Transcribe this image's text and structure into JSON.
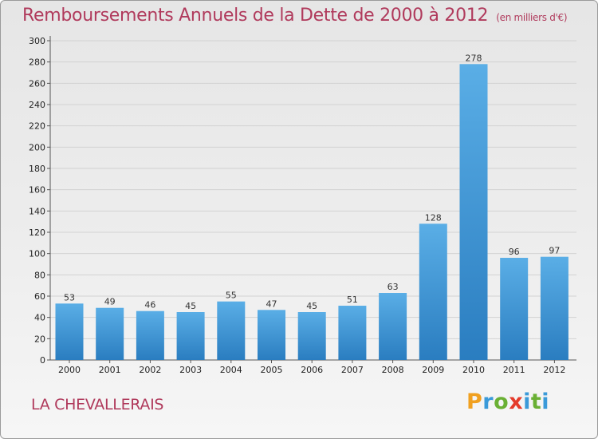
{
  "header": {
    "title": "Remboursements Annuels de la Dette de 2000 à 2012",
    "unit": "(en milliers d'€)"
  },
  "footer": {
    "commune": "LA CHEVALLERAIS",
    "logo": "Proxiti"
  },
  "chart_data": {
    "type": "bar",
    "title": "Remboursements Annuels de la Dette de 2000 à 2012",
    "subtitle": "(en milliers d'€)",
    "categories": [
      "2000",
      "2001",
      "2002",
      "2003",
      "2004",
      "2005",
      "2006",
      "2007",
      "2008",
      "2009",
      "2010",
      "2011",
      "2012"
    ],
    "values": [
      53,
      49,
      46,
      45,
      55,
      47,
      45,
      51,
      63,
      128,
      278,
      96,
      97
    ],
    "ylim": [
      0,
      300
    ],
    "yticks": [
      0,
      20,
      40,
      60,
      80,
      100,
      120,
      140,
      160,
      180,
      200,
      220,
      240,
      260,
      280,
      300
    ],
    "grid": true,
    "legend": "none",
    "colors": {
      "bar_top": "#5aaee6",
      "bar_bottom": "#2a7dc0",
      "title": "#b03a5c"
    }
  }
}
